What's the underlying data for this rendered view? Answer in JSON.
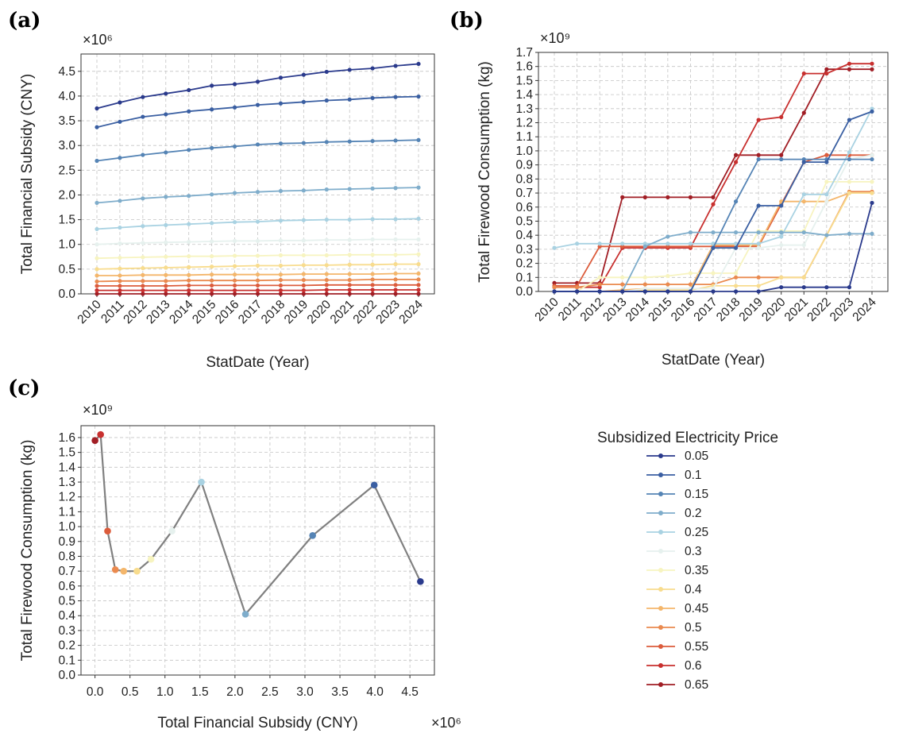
{
  "panels": {
    "a": "(a)",
    "b": "(b)",
    "c": "(c)"
  },
  "legend": {
    "title": "Subsidized Electricity Price",
    "entries": [
      "0.05",
      "0.1",
      "0.15",
      "0.2",
      "0.25",
      "0.3",
      "0.35",
      "0.4",
      "0.45",
      "0.5",
      "0.55",
      "0.6",
      "0.65"
    ],
    "colors": [
      "#2a3a8c",
      "#3a5fa2",
      "#5584b5",
      "#7fadcb",
      "#a9d2e2",
      "#e6f1ee",
      "#f7f4c0",
      "#f8dc8e",
      "#f4b66b",
      "#ea8a4f",
      "#dc5c3c",
      "#c8302f",
      "#a11e25"
    ]
  },
  "chart_data": [
    {
      "type": "line",
      "panel": "a",
      "xlabel": "StatDate (Year)",
      "ylabel": "Total Financial Subsidy (CNY)",
      "y_multiplier": "×10⁶",
      "x": [
        2010,
        2011,
        2012,
        2013,
        2014,
        2015,
        2016,
        2017,
        2018,
        2019,
        2020,
        2021,
        2022,
        2023,
        2024
      ],
      "xticks": [
        "2010",
        "2011",
        "2012",
        "2013",
        "2014",
        "2015",
        "2016",
        "2017",
        "2018",
        "2019",
        "2020",
        "2021",
        "2022",
        "2023",
        "2024"
      ],
      "yticks": [
        "0.0",
        "0.5",
        "1.0",
        "1.5",
        "2.0",
        "2.5",
        "3.0",
        "3.5",
        "4.0",
        "4.5"
      ],
      "ylim": [
        0,
        4.85
      ],
      "grid": true,
      "series": [
        {
          "name": "0.05",
          "values": [
            3.75,
            3.87,
            3.98,
            4.05,
            4.12,
            4.21,
            4.24,
            4.29,
            4.37,
            4.43,
            4.49,
            4.53,
            4.56,
            4.61,
            4.65
          ]
        },
        {
          "name": "0.1",
          "values": [
            3.37,
            3.48,
            3.58,
            3.63,
            3.69,
            3.73,
            3.77,
            3.82,
            3.85,
            3.88,
            3.91,
            3.93,
            3.96,
            3.98,
            3.99
          ]
        },
        {
          "name": "0.15",
          "values": [
            2.69,
            2.75,
            2.81,
            2.86,
            2.91,
            2.95,
            2.98,
            3.02,
            3.04,
            3.05,
            3.07,
            3.08,
            3.09,
            3.1,
            3.11
          ]
        },
        {
          "name": "0.2",
          "values": [
            1.84,
            1.88,
            1.93,
            1.96,
            1.98,
            2.01,
            2.04,
            2.06,
            2.08,
            2.09,
            2.11,
            2.12,
            2.13,
            2.14,
            2.15
          ]
        },
        {
          "name": "0.25",
          "values": [
            1.31,
            1.34,
            1.37,
            1.39,
            1.41,
            1.43,
            1.45,
            1.46,
            1.48,
            1.49,
            1.5,
            1.5,
            1.51,
            1.51,
            1.52
          ]
        },
        {
          "name": "0.3",
          "values": [
            1.0,
            1.02,
            1.03,
            1.04,
            1.05,
            1.06,
            1.07,
            1.07,
            1.08,
            1.08,
            1.09,
            1.09,
            1.1,
            1.1,
            1.1
          ]
        },
        {
          "name": "0.35",
          "values": [
            0.72,
            0.73,
            0.74,
            0.75,
            0.76,
            0.76,
            0.77,
            0.77,
            0.78,
            0.78,
            0.78,
            0.79,
            0.79,
            0.79,
            0.8
          ]
        },
        {
          "name": "0.4",
          "values": [
            0.5,
            0.51,
            0.52,
            0.53,
            0.54,
            0.55,
            0.56,
            0.57,
            0.57,
            0.58,
            0.58,
            0.59,
            0.59,
            0.6,
            0.6
          ]
        },
        {
          "name": "0.45",
          "values": [
            0.37,
            0.37,
            0.38,
            0.38,
            0.38,
            0.39,
            0.39,
            0.39,
            0.39,
            0.4,
            0.4,
            0.4,
            0.4,
            0.41,
            0.41
          ]
        },
        {
          "name": "0.5",
          "values": [
            0.25,
            0.26,
            0.26,
            0.26,
            0.27,
            0.27,
            0.27,
            0.27,
            0.28,
            0.28,
            0.28,
            0.28,
            0.29,
            0.29,
            0.29
          ]
        },
        {
          "name": "0.55",
          "values": [
            0.16,
            0.16,
            0.16,
            0.16,
            0.17,
            0.17,
            0.17,
            0.17,
            0.17,
            0.17,
            0.18,
            0.18,
            0.18,
            0.18,
            0.18
          ]
        },
        {
          "name": "0.6",
          "values": [
            0.07,
            0.07,
            0.07,
            0.07,
            0.07,
            0.07,
            0.07,
            0.07,
            0.07,
            0.07,
            0.08,
            0.08,
            0.08,
            0.08,
            0.08
          ]
        },
        {
          "name": "0.65",
          "values": [
            0.0,
            0.0,
            0.0,
            0.0,
            0.0,
            0.0,
            0.0,
            0.0,
            0.0,
            0.0,
            0.0,
            0.0,
            0.0,
            0.0,
            0.0
          ]
        }
      ]
    },
    {
      "type": "line",
      "panel": "b",
      "xlabel": "StatDate (Year)",
      "ylabel": "Total Firewood Consumption (kg)",
      "y_multiplier": "×10⁹",
      "x": [
        2010,
        2011,
        2012,
        2013,
        2014,
        2015,
        2016,
        2017,
        2018,
        2019,
        2020,
        2021,
        2022,
        2023,
        2024
      ],
      "xticks": [
        "2010",
        "2011",
        "2012",
        "2013",
        "2014",
        "2015",
        "2016",
        "2017",
        "2018",
        "2019",
        "2020",
        "2021",
        "2022",
        "2023",
        "2024"
      ],
      "yticks": [
        "0.0",
        "0.1",
        "0.2",
        "0.3",
        "0.4",
        "0.5",
        "0.6",
        "0.7",
        "0.8",
        "0.9",
        "1.0",
        "1.1",
        "1.2",
        "1.3",
        "1.4",
        "1.5",
        "1.6",
        "1.7"
      ],
      "ylim": [
        0,
        1.7
      ],
      "grid": true,
      "series": [
        {
          "name": "0.05",
          "values": [
            0,
            0,
            0,
            0,
            0,
            0,
            0,
            0,
            0,
            0,
            0.03,
            0.03,
            0.03,
            0.03,
            0.63
          ]
        },
        {
          "name": "0.1",
          "values": [
            0,
            0,
            0,
            0,
            0,
            0,
            0,
            0.31,
            0.31,
            0.61,
            0.61,
            0.92,
            0.92,
            1.22,
            1.28
          ]
        },
        {
          "name": "0.15",
          "values": [
            0,
            0,
            0,
            0,
            0,
            0,
            0,
            0.31,
            0.64,
            0.94,
            0.94,
            0.94,
            0.94,
            0.94,
            0.94
          ]
        },
        {
          "name": "0.2",
          "values": [
            0,
            0,
            0,
            0,
            0.32,
            0.39,
            0.42,
            0.42,
            0.42,
            0.42,
            0.42,
            0.42,
            0.4,
            0.41,
            0.41
          ]
        },
        {
          "name": "0.25",
          "values": [
            0.31,
            0.34,
            0.34,
            0.34,
            0.34,
            0.34,
            0.34,
            0.34,
            0.34,
            0.34,
            0.39,
            0.69,
            0.69,
            0.99,
            1.3
          ]
        },
        {
          "name": "0.3",
          "values": [
            0,
            0,
            0,
            0,
            0.02,
            0.02,
            0.02,
            0.02,
            0.31,
            0.31,
            0.33,
            0.33,
            0.64,
            0.94,
            0.97
          ]
        },
        {
          "name": "0.35",
          "values": [
            0,
            0,
            0.1,
            0.1,
            0.1,
            0.11,
            0.13,
            0.13,
            0.13,
            0.43,
            0.43,
            0.43,
            0.78,
            0.78,
            0.78
          ]
        },
        {
          "name": "0.4",
          "values": [
            0,
            0,
            0,
            0,
            0.01,
            0.01,
            0.01,
            0.04,
            0.04,
            0.04,
            0.1,
            0.1,
            0.4,
            0.7,
            0.7
          ]
        },
        {
          "name": "0.45",
          "values": [
            0,
            0,
            0,
            0.01,
            0.02,
            0.02,
            0.02,
            0.33,
            0.33,
            0.33,
            0.64,
            0.64,
            0.64,
            0.7,
            0.7
          ]
        },
        {
          "name": "0.5",
          "values": [
            0.03,
            0.03,
            0.05,
            0.05,
            0.05,
            0.05,
            0.05,
            0.05,
            0.1,
            0.1,
            0.1,
            0.1,
            0.4,
            0.71,
            0.71
          ]
        },
        {
          "name": "0.55",
          "values": [
            0.04,
            0.04,
            0.32,
            0.32,
            0.32,
            0.32,
            0.32,
            0.32,
            0.32,
            0.32,
            0.62,
            0.92,
            0.97,
            0.97,
            0.97
          ]
        },
        {
          "name": "0.6",
          "values": [
            0.03,
            0.03,
            0.03,
            0.31,
            0.31,
            0.31,
            0.31,
            0.62,
            0.92,
            1.22,
            1.24,
            1.55,
            1.55,
            1.62,
            1.62
          ]
        },
        {
          "name": "0.65",
          "values": [
            0.06,
            0.06,
            0.06,
            0.67,
            0.67,
            0.67,
            0.67,
            0.67,
            0.97,
            0.97,
            0.97,
            1.27,
            1.58,
            1.58,
            1.58
          ]
        }
      ]
    },
    {
      "type": "scatter",
      "panel": "c",
      "xlabel": "Total Financial Subsidy (CNY)",
      "x_multiplier": "×10⁶",
      "ylabel": "Total Firewood Consumption (kg)",
      "y_multiplier": "×10⁹",
      "xticks": [
        "0.0",
        "0.5",
        "1.0",
        "1.5",
        "2.0",
        "2.5",
        "3.0",
        "3.5",
        "4.0",
        "4.5"
      ],
      "yticks": [
        "0.0",
        "0.1",
        "0.2",
        "0.3",
        "0.4",
        "0.5",
        "0.6",
        "0.7",
        "0.8",
        "0.9",
        "1.0",
        "1.1",
        "1.2",
        "1.3",
        "1.4",
        "1.5",
        "1.6"
      ],
      "xlim": [
        -0.2,
        4.85
      ],
      "ylim": [
        0,
        1.68
      ],
      "grid": true,
      "connect_color": "#808080",
      "points": [
        {
          "name": "0.65",
          "x": 0.0,
          "y": 1.58
        },
        {
          "name": "0.6",
          "x": 0.08,
          "y": 1.62
        },
        {
          "name": "0.55",
          "x": 0.18,
          "y": 0.97
        },
        {
          "name": "0.5",
          "x": 0.29,
          "y": 0.71
        },
        {
          "name": "0.45",
          "x": 0.41,
          "y": 0.7
        },
        {
          "name": "0.4",
          "x": 0.6,
          "y": 0.7
        },
        {
          "name": "0.35",
          "x": 0.8,
          "y": 0.78
        },
        {
          "name": "0.3",
          "x": 1.1,
          "y": 0.97
        },
        {
          "name": "0.25",
          "x": 1.52,
          "y": 1.3
        },
        {
          "name": "0.2",
          "x": 2.15,
          "y": 0.41
        },
        {
          "name": "0.15",
          "x": 3.11,
          "y": 0.94
        },
        {
          "name": "0.1",
          "x": 3.99,
          "y": 1.28
        },
        {
          "name": "0.05",
          "x": 4.65,
          "y": 0.63
        }
      ]
    }
  ]
}
